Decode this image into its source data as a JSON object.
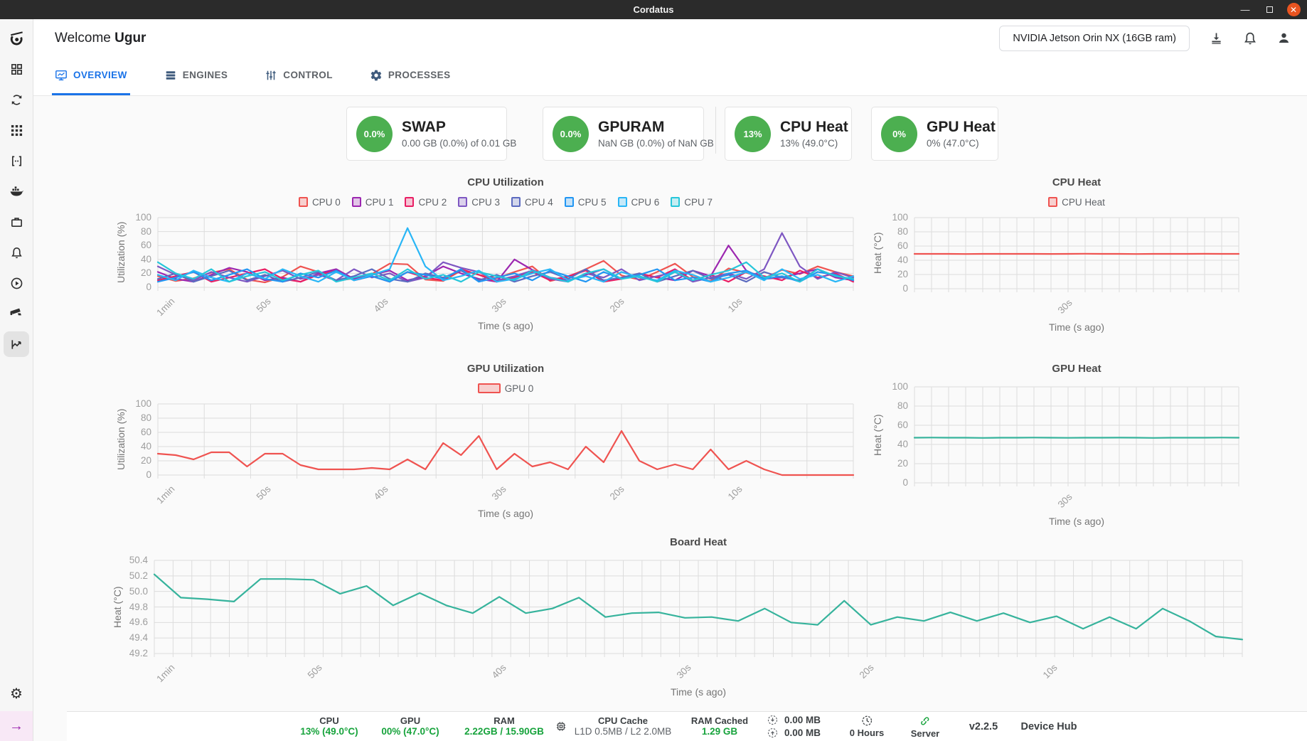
{
  "titlebar": {
    "title": "Cordatus"
  },
  "sidebar": {
    "icons": [
      "cordatus-logo",
      "dashboard",
      "sync",
      "apps",
      "code-brackets",
      "docker",
      "jobs",
      "notifications",
      "media-play",
      "camera",
      "analytics",
      "settings",
      "expand"
    ]
  },
  "header": {
    "welcome_prefix": "Welcome",
    "username": "Ugur",
    "device_selector": "NVIDIA Jetson Orin NX (16GB ram)"
  },
  "tabs": [
    {
      "label": "OVERVIEW",
      "active": true
    },
    {
      "label": "ENGINES",
      "active": false
    },
    {
      "label": "CONTROL",
      "active": false
    },
    {
      "label": "PROCESSES",
      "active": false
    }
  ],
  "stat_cards": [
    {
      "badge": "0.0%",
      "title": "SWAP",
      "subtitle": "0.00 GB (0.0%) of 0.01 GB"
    },
    {
      "badge": "0.0%",
      "title": "GPURAM",
      "subtitle": "NaN GB (0.0%) of NaN GB"
    },
    {
      "badge": "13%",
      "title": "CPU Heat",
      "subtitle": "13% (49.0°C)"
    },
    {
      "badge": "0%",
      "title": "GPU Heat",
      "subtitle": "0% (47.0°C)"
    }
  ],
  "chart_data": [
    {
      "id": "cpu_util",
      "type": "line",
      "title": "CPU Utilization",
      "ylabel": "Utilization (%)",
      "xlabel": "Time (s ago)",
      "ylim": [
        0,
        100
      ],
      "vgrid": 15,
      "yticks": [
        {
          "v": 0,
          "l": "0"
        },
        {
          "v": 20,
          "l": "20"
        },
        {
          "v": 40,
          "l": "40"
        },
        {
          "v": 60,
          "l": "60"
        },
        {
          "v": 80,
          "l": "80"
        },
        {
          "v": 100,
          "l": "100"
        }
      ],
      "xticks": [
        {
          "label": "1min",
          "pos": 0.016
        },
        {
          "label": "50s",
          "pos": 0.154
        },
        {
          "label": "40s",
          "pos": 0.323
        },
        {
          "label": "30s",
          "pos": 0.493
        },
        {
          "label": "20s",
          "pos": 0.663
        },
        {
          "label": "10s",
          "pos": 0.832
        }
      ],
      "legend": [
        {
          "label": "CPU 0",
          "color": "#ef5350"
        },
        {
          "label": "CPU 1",
          "color": "#9c27b0"
        },
        {
          "label": "CPU 2",
          "color": "#e91e63"
        },
        {
          "label": "CPU 3",
          "color": "#7e57c2"
        },
        {
          "label": "CPU 4",
          "color": "#5c6bc0"
        },
        {
          "label": "CPU 5",
          "color": "#2196f3"
        },
        {
          "label": "CPU 6",
          "color": "#29b6f6"
        },
        {
          "label": "CPU 7",
          "color": "#26c6da"
        }
      ],
      "series": [
        {
          "name": "CPU 0",
          "color": "#ef5350",
          "values": [
            16,
            9,
            13,
            21,
            26,
            11,
            7,
            15,
            30,
            22,
            9,
            13,
            19,
            34,
            33,
            11,
            9,
            24,
            18,
            13,
            22,
            30,
            9,
            15,
            26,
            38,
            17,
            11,
            22,
            34,
            15,
            9,
            27,
            21,
            13,
            25,
            19,
            30,
            22,
            16
          ]
        },
        {
          "name": "CPU 1",
          "color": "#9c27b0",
          "values": [
            22,
            12,
            8,
            18,
            28,
            22,
            10,
            14,
            8,
            20,
            26,
            12,
            18,
            24,
            10,
            16,
            30,
            20,
            12,
            8,
            40,
            25,
            14,
            10,
            18,
            26,
            12,
            20,
            14,
            10,
            24,
            16,
            60,
            24,
            12,
            14,
            20,
            26,
            14,
            10
          ]
        },
        {
          "name": "CPU 2",
          "color": "#e91e63",
          "values": [
            10,
            16,
            22,
            8,
            14,
            20,
            26,
            12,
            8,
            18,
            24,
            10,
            16,
            8,
            22,
            14,
            10,
            26,
            18,
            8,
            14,
            22,
            10,
            16,
            24,
            8,
            12,
            20,
            14,
            26,
            10,
            18,
            8,
            22,
            16,
            10,
            24,
            14,
            20,
            8
          ]
        },
        {
          "name": "CPU 3",
          "color": "#7e57c2",
          "values": [
            30,
            18,
            10,
            22,
            14,
            8,
            16,
            24,
            12,
            18,
            10,
            26,
            14,
            20,
            8,
            14,
            36,
            28,
            22,
            10,
            16,
            24,
            12,
            8,
            20,
            14,
            26,
            10,
            16,
            22,
            8,
            14,
            20,
            12,
            26,
            78,
            30,
            12,
            22,
            14
          ]
        },
        {
          "name": "CPU 4",
          "color": "#5c6bc0",
          "values": [
            12,
            20,
            8,
            16,
            24,
            10,
            18,
            8,
            14,
            22,
            10,
            16,
            26,
            12,
            8,
            20,
            14,
            24,
            10,
            18,
            8,
            16,
            22,
            12,
            26,
            10,
            14,
            20,
            8,
            16,
            24,
            12,
            18,
            8,
            22,
            14,
            10,
            26,
            16,
            12
          ]
        },
        {
          "name": "CPU 5",
          "color": "#2196f3",
          "values": [
            8,
            14,
            22,
            10,
            18,
            26,
            12,
            8,
            20,
            14,
            24,
            10,
            16,
            8,
            22,
            18,
            12,
            26,
            8,
            14,
            20,
            10,
            24,
            16,
            8,
            22,
            12,
            18,
            26,
            10,
            14,
            8,
            20,
            24,
            12,
            16,
            8,
            22,
            18,
            10
          ]
        },
        {
          "name": "CPU 6",
          "color": "#29b6f6",
          "values": [
            18,
            10,
            24,
            14,
            8,
            20,
            12,
            26,
            16,
            8,
            22,
            10,
            18,
            26,
            85,
            30,
            10,
            16,
            24,
            8,
            12,
            20,
            26,
            10,
            16,
            8,
            22,
            14,
            10,
            24,
            18,
            8,
            14,
            22,
            10,
            26,
            12,
            18,
            8,
            16
          ]
        },
        {
          "name": "CPU 7",
          "color": "#26c6da",
          "values": [
            36,
            20,
            12,
            26,
            8,
            16,
            22,
            10,
            18,
            24,
            8,
            14,
            20,
            10,
            26,
            12,
            18,
            8,
            22,
            16,
            10,
            24,
            14,
            8,
            20,
            26,
            12,
            16,
            8,
            22,
            10,
            18,
            24,
            36,
            14,
            20,
            8,
            26,
            16,
            12
          ]
        }
      ]
    },
    {
      "id": "cpu_heat",
      "type": "line",
      "title": "CPU Heat",
      "ylabel": "Heat (°C)",
      "xlabel": "Time (s ago)",
      "ylim": [
        0,
        100
      ],
      "vgrid": 19,
      "yticks": [
        {
          "v": 0,
          "l": "0"
        },
        {
          "v": 20,
          "l": "20"
        },
        {
          "v": 40,
          "l": "40"
        },
        {
          "v": 60,
          "l": "60"
        },
        {
          "v": 80,
          "l": "80"
        },
        {
          "v": 100,
          "l": "100"
        }
      ],
      "xticks": [
        {
          "label": "30s",
          "pos": 0.47
        }
      ],
      "legend": [
        {
          "label": "CPU Heat",
          "color": "#ef5350"
        }
      ],
      "series": [
        {
          "name": "CPU Heat",
          "color": "#ef5350",
          "values": [
            49,
            49,
            49,
            48.8,
            49,
            49,
            49,
            49,
            48.9,
            49,
            49.2,
            49,
            49,
            48.8,
            49,
            49,
            49,
            49.1,
            49,
            49
          ]
        }
      ]
    },
    {
      "id": "gpu_util",
      "type": "line",
      "title": "GPU Utilization",
      "ylabel": "Utilization (%)",
      "xlabel": "Time (s ago)",
      "ylim": [
        0,
        100
      ],
      "vgrid": 15,
      "yticks": [
        {
          "v": 0,
          "l": "0"
        },
        {
          "v": 20,
          "l": "20"
        },
        {
          "v": 40,
          "l": "40"
        },
        {
          "v": 60,
          "l": "60"
        },
        {
          "v": 80,
          "l": "80"
        },
        {
          "v": 100,
          "l": "100"
        }
      ],
      "xticks": [
        {
          "label": "1min",
          "pos": 0.016
        },
        {
          "label": "50s",
          "pos": 0.154
        },
        {
          "label": "40s",
          "pos": 0.323
        },
        {
          "label": "30s",
          "pos": 0.493
        },
        {
          "label": "20s",
          "pos": 0.663
        },
        {
          "label": "10s",
          "pos": 0.832
        }
      ],
      "legend": [
        {
          "label": "GPU 0",
          "color": "#ef5350",
          "wide": true
        }
      ],
      "series": [
        {
          "name": "GPU 0",
          "color": "#ef5350",
          "values": [
            30,
            28,
            22,
            32,
            32,
            12,
            30,
            30,
            14,
            8,
            8,
            8,
            10,
            8,
            22,
            8,
            45,
            28,
            55,
            8,
            30,
            12,
            18,
            8,
            40,
            18,
            62,
            20,
            8,
            15,
            8,
            36,
            8,
            20,
            8,
            0,
            0,
            0,
            0,
            0
          ]
        }
      ]
    },
    {
      "id": "gpu_heat",
      "type": "line",
      "title": "GPU Heat",
      "ylabel": "Heat (°C)",
      "xlabel": "Time (s ago)",
      "ylim": [
        0,
        100
      ],
      "vgrid": 19,
      "yticks": [
        {
          "v": 0,
          "l": "0"
        },
        {
          "v": 20,
          "l": "20"
        },
        {
          "v": 40,
          "l": "40"
        },
        {
          "v": 60,
          "l": "60"
        },
        {
          "v": 80,
          "l": "80"
        },
        {
          "v": 100,
          "l": "100"
        }
      ],
      "xticks": [
        {
          "label": "30s",
          "pos": 0.47
        }
      ],
      "legend": [],
      "series": [
        {
          "name": "GPU Heat",
          "color": "#36b39c",
          "values": [
            47,
            47.2,
            47,
            47,
            46.8,
            47,
            47,
            47.2,
            47,
            46.9,
            47,
            47,
            47.1,
            47,
            46.8,
            47,
            47,
            47,
            47.2,
            47
          ]
        }
      ]
    },
    {
      "id": "board_heat",
      "type": "line",
      "title": "Board Heat",
      "ylabel": "Heat (°C)",
      "xlabel": "Time (s ago)",
      "ylim": [
        49.2,
        50.4
      ],
      "vgrid": 58,
      "yticks": [
        {
          "v": 49.2,
          "l": "49.2"
        },
        {
          "v": 49.4,
          "l": "49.4"
        },
        {
          "v": 49.6,
          "l": "49.6"
        },
        {
          "v": 49.8,
          "l": "49.8"
        },
        {
          "v": 50.0,
          "l": "50.0"
        },
        {
          "v": 50.2,
          "l": "50.2"
        },
        {
          "v": 50.4,
          "l": "50.4"
        }
      ],
      "xticks": [
        {
          "label": "1min",
          "pos": 0.014
        },
        {
          "label": "50s",
          "pos": 0.149
        },
        {
          "label": "40s",
          "pos": 0.318
        },
        {
          "label": "30s",
          "pos": 0.488
        },
        {
          "label": "20s",
          "pos": 0.656
        },
        {
          "label": "10s",
          "pos": 0.825
        }
      ],
      "legend": [],
      "series": [
        {
          "name": "Board Heat",
          "color": "#36b39c",
          "values": [
            50.22,
            49.92,
            49.9,
            49.87,
            50.16,
            50.16,
            50.15,
            49.97,
            50.07,
            49.82,
            49.98,
            49.82,
            49.72,
            49.93,
            49.72,
            49.78,
            49.92,
            49.67,
            49.72,
            49.73,
            49.66,
            49.67,
            49.62,
            49.78,
            49.6,
            49.57,
            49.88,
            49.57,
            49.67,
            49.62,
            49.73,
            49.62,
            49.72,
            49.6,
            49.68,
            49.52,
            49.67,
            49.52,
            49.78,
            49.62,
            49.42,
            49.38
          ]
        }
      ]
    }
  ],
  "statusbar": {
    "cpu": {
      "label": "CPU",
      "value": "13% (49.0°C)"
    },
    "gpu": {
      "label": "GPU",
      "value": "00% (47.0°C)"
    },
    "ram": {
      "label": "RAM",
      "value": "2.22GB / 15.90GB"
    },
    "cpu_cache": {
      "label": "CPU Cache",
      "value": "L1D 0.5MB / L2 2.0MB"
    },
    "ram_cached": {
      "label": "RAM Cached",
      "value": "1.29 GB"
    },
    "network_down": "0.00 MB",
    "network_up": "0.00 MB",
    "uptime": "0 Hours",
    "server": "Server",
    "version": "v2.2.5",
    "device_hub": "Device Hub"
  },
  "colors": {
    "accent_blue": "#1a73e8",
    "badge_green": "#4caf50",
    "status_green": "#17a33c",
    "close_orange": "#e95420",
    "chart_red": "#ef5350",
    "chart_teal": "#36b39c"
  }
}
